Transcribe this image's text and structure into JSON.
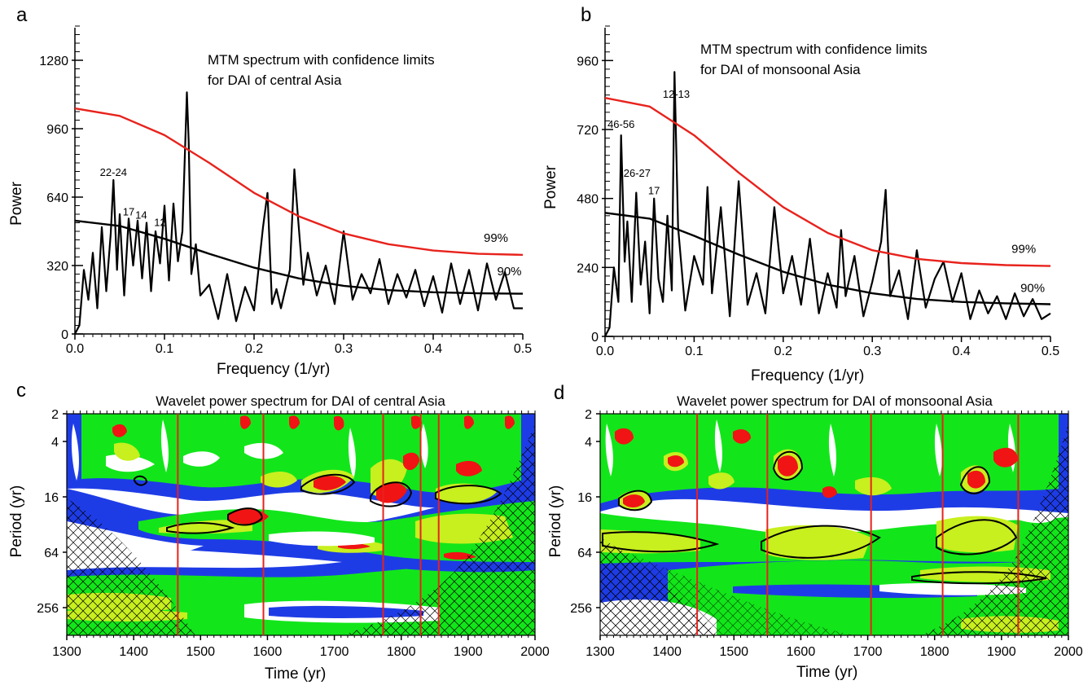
{
  "colors": {
    "spectrum": "#000000",
    "limit99": "#e8221c",
    "limit90": "#000000",
    "wavelet_low": "#1e3ce6",
    "wavelet_mid": "#12e61a",
    "wavelet_high": "#c8ef1e",
    "wavelet_peak": "#f01414",
    "era_marker": "#e8221c"
  },
  "chart_data": [
    {
      "panel": "a",
      "type": "line",
      "title": "MTM spectrum with confidence limits\nfor DAI of central Asia",
      "xlabel": "Frequency (1/yr)",
      "ylabel": "Power",
      "xlim": [
        0,
        0.5
      ],
      "ylim": [
        0,
        1440
      ],
      "x_ticks": [
        "0.0",
        "0.1",
        "0.2",
        "0.3",
        "0.4",
        "0.5"
      ],
      "y_ticks": [
        "0",
        "320",
        "640",
        "960",
        "1280"
      ],
      "series": [
        {
          "role": "spectrum",
          "x": [
            0,
            0.005,
            0.01,
            0.015,
            0.02,
            0.025,
            0.03,
            0.035,
            0.04,
            0.043,
            0.047,
            0.05,
            0.055,
            0.06,
            0.065,
            0.07,
            0.075,
            0.08,
            0.085,
            0.09,
            0.095,
            0.1,
            0.105,
            0.11,
            0.115,
            0.12,
            0.125,
            0.127,
            0.13,
            0.135,
            0.14,
            0.15,
            0.16,
            0.17,
            0.18,
            0.19,
            0.2,
            0.21,
            0.215,
            0.22,
            0.225,
            0.23,
            0.24,
            0.245,
            0.248,
            0.255,
            0.26,
            0.27,
            0.28,
            0.29,
            0.3,
            0.31,
            0.32,
            0.33,
            0.34,
            0.35,
            0.36,
            0.37,
            0.38,
            0.39,
            0.4,
            0.41,
            0.42,
            0.43,
            0.44,
            0.45,
            0.46,
            0.47,
            0.48,
            0.49,
            0.5
          ],
          "y": [
            0,
            40,
            300,
            160,
            380,
            120,
            500,
            200,
            470,
            720,
            300,
            560,
            180,
            540,
            320,
            530,
            260,
            520,
            200,
            480,
            330,
            600,
            250,
            610,
            340,
            480,
            1130,
            900,
            280,
            420,
            180,
            230,
            70,
            280,
            60,
            220,
            110,
            500,
            660,
            140,
            210,
            120,
            300,
            770,
            600,
            230,
            380,
            180,
            320,
            140,
            480,
            160,
            280,
            190,
            350,
            140,
            280,
            170,
            300,
            130,
            270,
            100,
            330,
            140,
            300,
            110,
            330,
            160,
            290,
            120,
            120
          ]
        },
        {
          "role": "limit99",
          "label": "99%",
          "x": [
            0,
            0.05,
            0.1,
            0.15,
            0.2,
            0.25,
            0.3,
            0.35,
            0.4,
            0.45,
            0.5
          ],
          "y": [
            1055,
            1020,
            930,
            800,
            660,
            550,
            470,
            420,
            390,
            375,
            370
          ]
        },
        {
          "role": "limit90",
          "label": "90%",
          "x": [
            0,
            0.05,
            0.1,
            0.15,
            0.2,
            0.25,
            0.3,
            0.35,
            0.4,
            0.45,
            0.5
          ],
          "y": [
            530,
            505,
            445,
            375,
            310,
            260,
            225,
            205,
            195,
            190,
            188
          ]
        }
      ],
      "annotations": [
        {
          "text": "22-24",
          "x": 0.043,
          "y": 740
        },
        {
          "text": "17",
          "x": 0.06,
          "y": 555
        },
        {
          "text": "14",
          "x": 0.074,
          "y": 540
        },
        {
          "text": "12",
          "x": 0.095,
          "y": 505
        },
        {
          "text": "99%",
          "x": 0.47,
          "y": 430
        },
        {
          "text": "90%",
          "x": 0.485,
          "y": 275
        }
      ]
    },
    {
      "panel": "b",
      "type": "line",
      "title": "MTM spectrum with confidence limits\nfor DAI of monsoonal Asia",
      "xlabel": "Frequency (1/yr)",
      "ylabel": "Power",
      "xlim": [
        0,
        0.5
      ],
      "ylim": [
        0,
        1080
      ],
      "x_ticks": [
        "0.0",
        "0.1",
        "0.2",
        "0.3",
        "0.4",
        "0.5"
      ],
      "y_ticks": [
        "0",
        "240",
        "480",
        "720",
        "960"
      ],
      "series": [
        {
          "role": "spectrum",
          "x": [
            0,
            0.005,
            0.01,
            0.015,
            0.018,
            0.022,
            0.025,
            0.03,
            0.035,
            0.04,
            0.045,
            0.05,
            0.055,
            0.06,
            0.065,
            0.07,
            0.075,
            0.078,
            0.082,
            0.09,
            0.1,
            0.11,
            0.115,
            0.12,
            0.13,
            0.14,
            0.15,
            0.16,
            0.17,
            0.18,
            0.19,
            0.2,
            0.21,
            0.22,
            0.23,
            0.24,
            0.25,
            0.26,
            0.265,
            0.27,
            0.28,
            0.29,
            0.3,
            0.31,
            0.315,
            0.32,
            0.33,
            0.34,
            0.35,
            0.36,
            0.37,
            0.38,
            0.39,
            0.4,
            0.41,
            0.42,
            0.43,
            0.44,
            0.45,
            0.46,
            0.47,
            0.48,
            0.49,
            0.5
          ],
          "y": [
            0,
            30,
            240,
            120,
            700,
            260,
            400,
            120,
            500,
            180,
            330,
            80,
            480,
            200,
            120,
            420,
            160,
            920,
            380,
            90,
            280,
            180,
            520,
            150,
            450,
            70,
            540,
            110,
            220,
            80,
            450,
            150,
            280,
            110,
            340,
            80,
            220,
            100,
            370,
            140,
            280,
            70,
            190,
            330,
            510,
            140,
            230,
            60,
            300,
            100,
            200,
            260,
            120,
            220,
            60,
            160,
            80,
            140,
            60,
            150,
            70,
            130,
            60,
            80
          ]
        },
        {
          "role": "limit99",
          "label": "99%",
          "x": [
            0,
            0.05,
            0.1,
            0.15,
            0.2,
            0.25,
            0.3,
            0.35,
            0.4,
            0.45,
            0.5
          ],
          "y": [
            830,
            800,
            700,
            570,
            450,
            360,
            300,
            270,
            255,
            248,
            245
          ]
        },
        {
          "role": "limit90",
          "label": "90%",
          "x": [
            0,
            0.05,
            0.1,
            0.15,
            0.2,
            0.25,
            0.3,
            0.35,
            0.4,
            0.45,
            0.5
          ],
          "y": [
            430,
            410,
            350,
            285,
            225,
            180,
            150,
            130,
            120,
            115,
            112
          ]
        }
      ],
      "annotations": [
        {
          "text": "12-13",
          "x": 0.08,
          "y": 830
        },
        {
          "text": "46-56",
          "x": 0.018,
          "y": 725
        },
        {
          "text": "26-27",
          "x": 0.036,
          "y": 555
        },
        {
          "text": "17",
          "x": 0.055,
          "y": 495
        },
        {
          "text": "99%",
          "x": 0.47,
          "y": 290
        },
        {
          "text": "90%",
          "x": 0.48,
          "y": 155
        }
      ]
    },
    {
      "panel": "c",
      "type": "heatmap",
      "title": "Wavelet power spectrum for DAI of central Asia",
      "xlabel": "Time (yr)",
      "ylabel": "Period (yr)",
      "xlim": [
        1300,
        2000
      ],
      "y_scale": "log2",
      "ylim": [
        2,
        512
      ],
      "x_ticks": [
        "1300",
        "1400",
        "1500",
        "1600",
        "1700",
        "1800",
        "1900",
        "2000"
      ],
      "y_ticks": [
        "2",
        "4",
        "16",
        "64",
        "256"
      ],
      "era_markers_yr": [
        1466,
        1594,
        1773,
        1829,
        1856
      ]
    },
    {
      "panel": "d",
      "type": "heatmap",
      "title": "Wavelet power spectrum for DAI of monsoonal Asia",
      "xlabel": "Time (yr)",
      "ylabel": "Period (yr)",
      "xlim": [
        1300,
        2000
      ],
      "y_scale": "log2",
      "ylim": [
        2,
        512
      ],
      "x_ticks": [
        "1300",
        "1400",
        "1500",
        "1600",
        "1700",
        "1800",
        "1900",
        "2000"
      ],
      "y_ticks": [
        "2",
        "4",
        "16",
        "64",
        "256"
      ],
      "era_markers_yr": [
        1445,
        1550,
        1705,
        1812,
        1925
      ]
    }
  ]
}
